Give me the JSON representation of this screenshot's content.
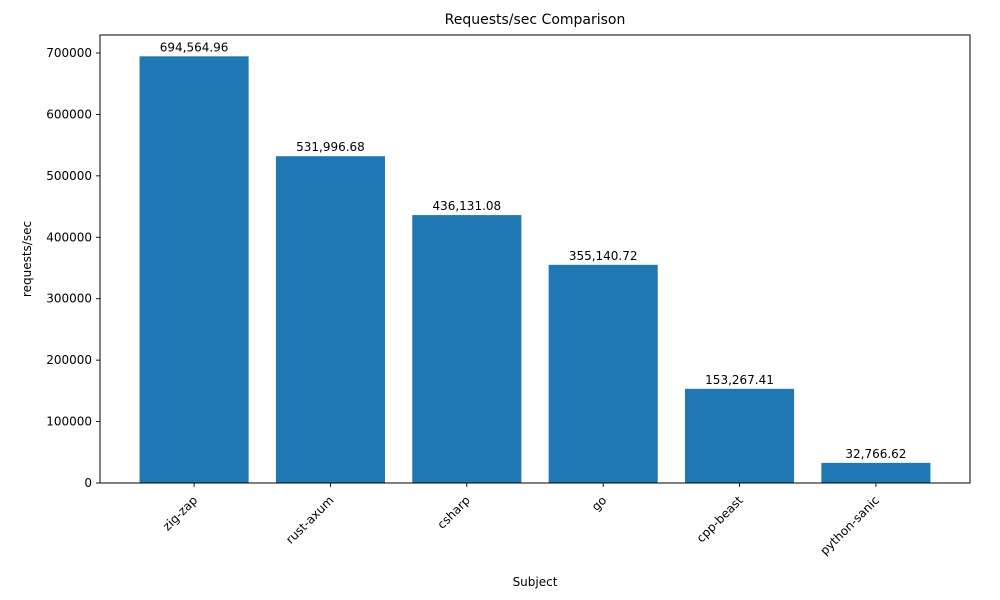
{
  "chart_data": {
    "type": "bar",
    "title": "Requests/sec Comparison",
    "xlabel": "Subject",
    "ylabel": "requests/sec",
    "categories": [
      "zig-zap",
      "rust-axum",
      "csharp",
      "go",
      "cpp-beast",
      "python-sanic"
    ],
    "values": [
      694564.96,
      531996.68,
      436131.08,
      355140.72,
      153267.41,
      32766.62
    ],
    "value_labels": [
      "694,564.96",
      "531,996.68",
      "436,131.08",
      "355,140.72",
      "153,267.41",
      "32,766.62"
    ],
    "bar_color": "#1f77b4",
    "axis_color": "#000000",
    "ylim": [
      0,
      729293
    ],
    "yticks": [
      0,
      100000,
      200000,
      300000,
      400000,
      500000,
      600000,
      700000
    ],
    "ytick_labels": [
      "0",
      "100000",
      "200000",
      "300000",
      "400000",
      "500000",
      "600000",
      "700000"
    ],
    "grid": false,
    "legend": null,
    "bar_width_fraction": 0.8,
    "x_tick_rotation_deg": 45
  }
}
